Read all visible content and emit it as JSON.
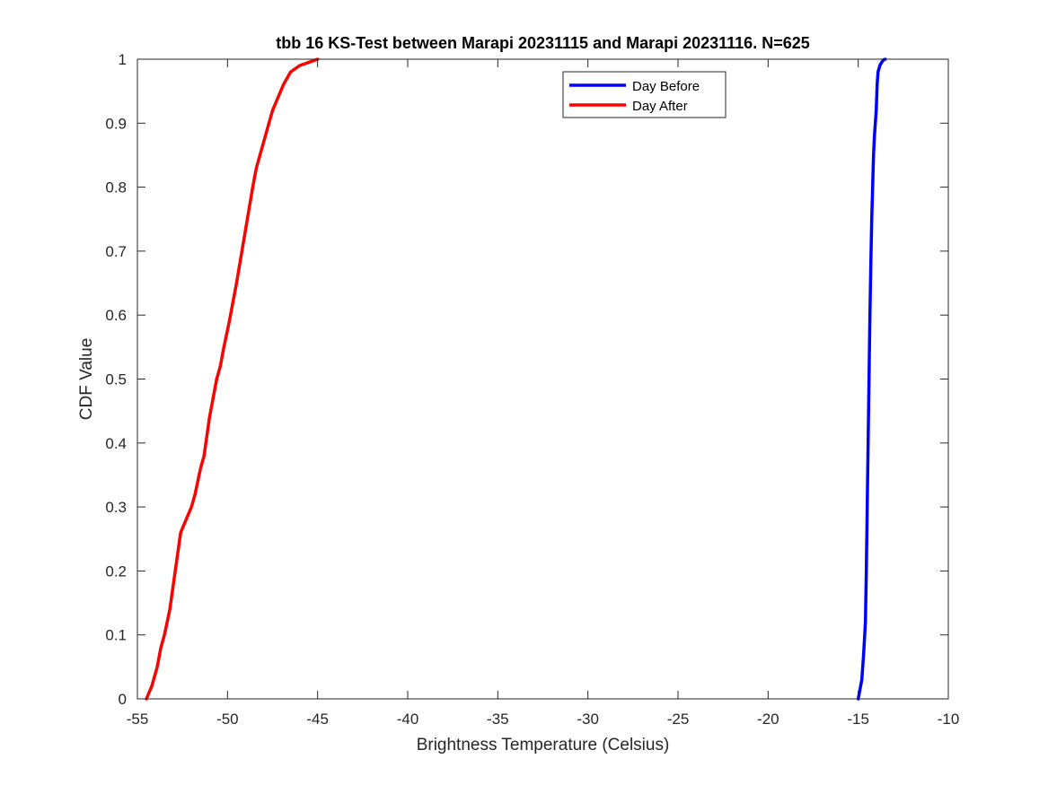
{
  "chart_data": {
    "type": "line",
    "title": "tbb 16 KS-Test between Marapi 20231115 and Marapi 20231116. N=625",
    "xlabel": "Brightness Temperature (Celsius)",
    "ylabel": "CDF Value",
    "xlim": [
      -55,
      -10
    ],
    "ylim": [
      0,
      1
    ],
    "xticks": [
      -55,
      -50,
      -45,
      -40,
      -35,
      -30,
      -25,
      -20,
      -15,
      -10
    ],
    "xtick_labels": [
      "-55",
      "-50",
      "-45",
      "-40",
      "-35",
      "-30",
      "-25",
      "-20",
      "-15",
      "-10"
    ],
    "yticks": [
      0,
      0.1,
      0.2,
      0.3,
      0.4,
      0.5,
      0.6,
      0.7,
      0.8,
      0.9,
      1
    ],
    "ytick_labels": [
      "0",
      "0.1",
      "0.2",
      "0.3",
      "0.4",
      "0.5",
      "0.6",
      "0.7",
      "0.8",
      "0.9",
      "1"
    ],
    "grid": false,
    "legend_position": "top-right",
    "series": [
      {
        "name": "Day Before",
        "color": "#0000ff",
        "x": [
          -15.0,
          -14.8,
          -14.7,
          -14.6,
          -14.55,
          -14.5,
          -14.45,
          -14.4,
          -14.35,
          -14.3,
          -14.25,
          -14.2,
          -14.15,
          -14.1,
          -14.0,
          -13.95,
          -13.9,
          -13.8,
          -13.7,
          -13.6,
          -13.5
        ],
        "y": [
          0.0,
          0.03,
          0.07,
          0.12,
          0.2,
          0.3,
          0.4,
          0.5,
          0.6,
          0.68,
          0.75,
          0.8,
          0.85,
          0.88,
          0.92,
          0.96,
          0.98,
          0.99,
          0.995,
          0.999,
          1.0
        ]
      },
      {
        "name": "Day After",
        "color": "#ff0000",
        "x": [
          -54.5,
          -54.2,
          -53.9,
          -53.7,
          -53.5,
          -53.2,
          -52.9,
          -52.6,
          -52.3,
          -52.0,
          -51.8,
          -51.5,
          -51.3,
          -51.2,
          -51.0,
          -50.8,
          -50.6,
          -50.4,
          -50.2,
          -49.9,
          -49.7,
          -49.5,
          -49.2,
          -48.9,
          -48.6,
          -48.4,
          -48.2,
          -48.0,
          -47.7,
          -47.5,
          -47.2,
          -46.9,
          -46.5,
          -46.0,
          -45.5,
          -45.0
        ],
        "y": [
          0.0,
          0.02,
          0.05,
          0.08,
          0.1,
          0.14,
          0.2,
          0.26,
          0.28,
          0.3,
          0.32,
          0.36,
          0.38,
          0.4,
          0.44,
          0.47,
          0.5,
          0.52,
          0.55,
          0.59,
          0.62,
          0.65,
          0.7,
          0.75,
          0.8,
          0.83,
          0.85,
          0.87,
          0.9,
          0.92,
          0.94,
          0.96,
          0.98,
          0.99,
          0.995,
          1.0
        ]
      }
    ]
  }
}
